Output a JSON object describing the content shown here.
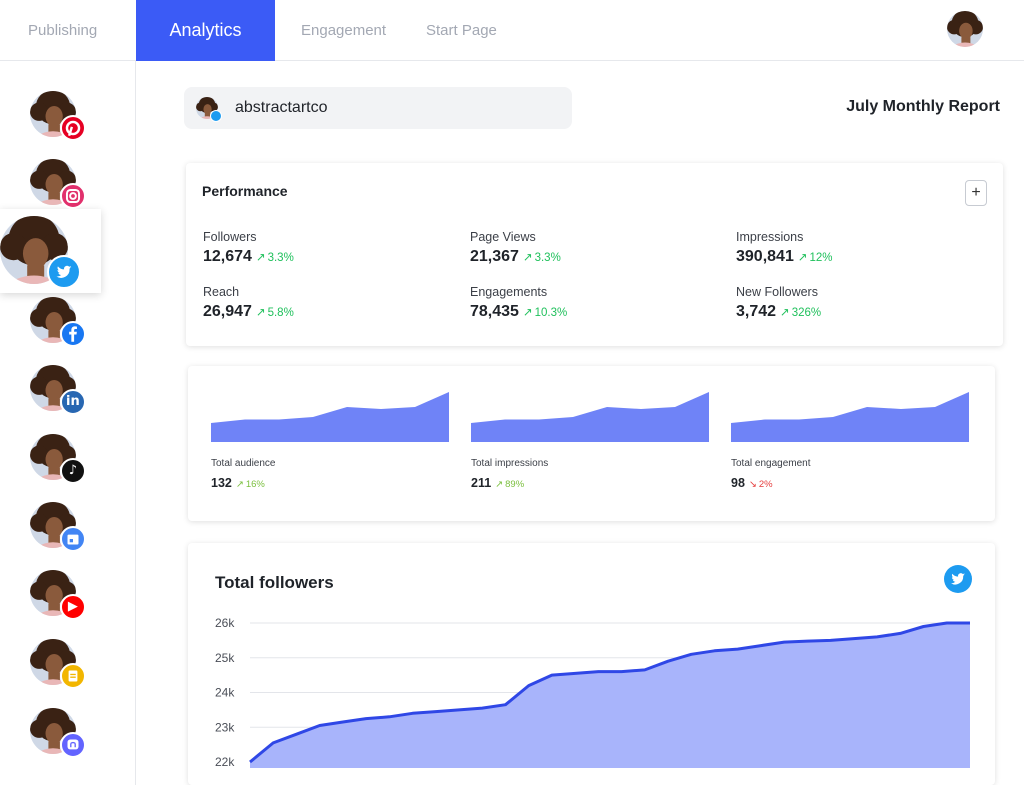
{
  "nav": {
    "tabs": [
      {
        "label": "Publishing",
        "active": false
      },
      {
        "label": "Analytics",
        "active": true
      },
      {
        "label": "Engagement",
        "active": false
      },
      {
        "label": "Start Page",
        "active": false
      }
    ],
    "accent_color": "#3b5bf6"
  },
  "sidebar": {
    "accounts": [
      {
        "network": "pinterest",
        "icon": "pinterest-icon",
        "color": "#e60023"
      },
      {
        "network": "instagram",
        "icon": "instagram-icon",
        "color": "#e1306c"
      },
      {
        "network": "twitter",
        "icon": "twitter-icon",
        "color": "#1d9bf0",
        "selected": true
      },
      {
        "network": "facebook",
        "icon": "facebook-icon",
        "color": "#1877f2"
      },
      {
        "network": "linkedin",
        "icon": "linkedin-icon",
        "color": "#2867b2",
        "glyph": "in"
      },
      {
        "network": "tiktok",
        "icon": "tiktok-icon",
        "color": "#111111",
        "glyph": "♪"
      },
      {
        "network": "google-business",
        "icon": "google-business-icon",
        "color": "#4285f4"
      },
      {
        "network": "youtube",
        "icon": "youtube-icon",
        "color": "#ff0000",
        "glyph": "▶"
      },
      {
        "network": "start-page",
        "icon": "start-page-icon",
        "color": "#f2b600"
      },
      {
        "network": "mastodon",
        "icon": "mastodon-icon",
        "color": "#6364ff"
      }
    ]
  },
  "account": {
    "handle": "abstractartco"
  },
  "report": {
    "title": "July Monthly Report"
  },
  "performance": {
    "title": "Performance",
    "add_label": "+",
    "metrics": [
      {
        "label": "Followers",
        "value": "12,674",
        "change": "3.3%"
      },
      {
        "label": "Page Views",
        "value": "21,367",
        "change": "3.3%"
      },
      {
        "label": "Impressions",
        "value": "390,841",
        "change": "12%"
      },
      {
        "label": "Reach",
        "value": "26,947",
        "change": "5.8%"
      },
      {
        "label": "Engagements",
        "value": "78,435",
        "change": "10.3%"
      },
      {
        "label": "New Followers",
        "value": "3,742",
        "change": "326%"
      }
    ],
    "trend_up_icon": "↗"
  },
  "mini_charts": [
    {
      "label": "Total audience",
      "value": "132",
      "change": "16%",
      "direction": "up",
      "shape": [
        0.38,
        0.45,
        0.45,
        0.5,
        0.7,
        0.66,
        0.7,
        1.0
      ]
    },
    {
      "label": "Total impressions",
      "value": "211",
      "change": "89%",
      "direction": "up",
      "shape": [
        0.38,
        0.45,
        0.45,
        0.5,
        0.7,
        0.66,
        0.7,
        1.0
      ]
    },
    {
      "label": "Total engagement",
      "value": "98",
      "change": "2%",
      "direction": "down",
      "shape": [
        0.38,
        0.45,
        0.45,
        0.5,
        0.7,
        0.66,
        0.7,
        1.0
      ]
    }
  ],
  "followers_chart": {
    "title": "Total followers",
    "network_icon": "twitter-icon",
    "fill_color": "#a8b4fb",
    "line_color": "#2f47e6",
    "chart_data": {
      "type": "area",
      "y_ticks": [
        "26k",
        "25k",
        "24k",
        "23k",
        "22k"
      ],
      "ylim": [
        22000,
        26000
      ],
      "values": [
        22000,
        22550,
        22800,
        23050,
        23150,
        23250,
        23300,
        23400,
        23450,
        23500,
        23550,
        23650,
        24200,
        24500,
        24550,
        24600,
        24600,
        24650,
        24900,
        25100,
        25200,
        25250,
        25350,
        25450,
        25480,
        25500,
        25550,
        25600,
        25700,
        25900,
        26000,
        26000
      ]
    }
  }
}
